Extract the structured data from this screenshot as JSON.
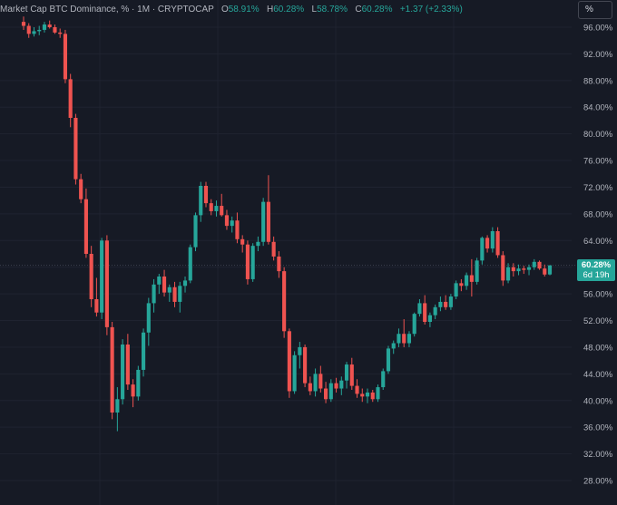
{
  "header": {
    "symbol_text": "Market Cap BTC Dominance, % · 1M · CRYPTOCAP",
    "open_label": "O",
    "open_value": "58.91%",
    "high_label": "H",
    "high_value": "60.28%",
    "low_label": "L",
    "low_value": "58.78%",
    "close_label": "C",
    "close_value": "60.28%",
    "change_value": "+1.37 (+2.33%)"
  },
  "scale_button_label": "%",
  "price_tag": {
    "price": "60.28%",
    "countdown": "6d 19h"
  },
  "colors": {
    "background": "#161a25",
    "up": "#26a69a",
    "down": "#ef5350",
    "grid": "#1f2330",
    "text": "#b2b5be"
  },
  "chart_data": {
    "type": "candlestick",
    "y_axis_labels": [
      "96.00%",
      "92.00%",
      "88.00%",
      "84.00%",
      "80.00%",
      "76.00%",
      "72.00%",
      "68.00%",
      "64.00%",
      "60.00%",
      "56.00%",
      "52.00%",
      "48.00%",
      "44.00%",
      "40.00%",
      "36.00%",
      "32.00%",
      "28.00%"
    ],
    "ylim": [
      24,
      98.5
    ],
    "last_price": 60.28,
    "grid": true,
    "ohlc": [
      [
        96.8,
        97.6,
        95.6,
        96.2
      ],
      [
        96.2,
        96.6,
        94.4,
        95.0
      ],
      [
        95.0,
        96.0,
        94.6,
        95.4
      ],
      [
        95.4,
        96.2,
        94.8,
        95.6
      ],
      [
        95.6,
        96.8,
        95.2,
        96.4
      ],
      [
        96.4,
        97.0,
        95.8,
        96.0
      ],
      [
        96.0,
        96.4,
        95.0,
        95.2
      ],
      [
        95.2,
        95.8,
        94.4,
        95.0
      ],
      [
        95.0,
        95.6,
        87.6,
        88.2
      ],
      [
        88.2,
        89.0,
        81.0,
        82.4
      ],
      [
        82.4,
        83.0,
        72.4,
        73.2
      ],
      [
        73.2,
        74.0,
        69.6,
        70.2
      ],
      [
        70.2,
        71.8,
        61.4,
        62.0
      ],
      [
        62.0,
        63.2,
        54.0,
        55.2
      ],
      [
        55.2,
        58.4,
        52.6,
        53.2
      ],
      [
        53.2,
        64.4,
        52.2,
        64.0
      ],
      [
        64.0,
        64.8,
        49.8,
        51.0
      ],
      [
        51.0,
        51.8,
        37.2,
        38.2
      ],
      [
        38.2,
        42.0,
        35.4,
        40.2
      ],
      [
        40.2,
        49.2,
        39.4,
        48.4
      ],
      [
        48.4,
        50.0,
        41.6,
        42.4
      ],
      [
        42.4,
        43.2,
        39.0,
        40.6
      ],
      [
        40.6,
        45.2,
        40.0,
        44.6
      ],
      [
        44.6,
        50.8,
        43.6,
        50.2
      ],
      [
        50.2,
        55.4,
        48.2,
        54.6
      ],
      [
        54.6,
        58.2,
        53.2,
        57.4
      ],
      [
        57.4,
        59.0,
        56.0,
        58.6
      ],
      [
        58.6,
        59.6,
        55.6,
        56.2
      ],
      [
        56.2,
        57.4,
        54.8,
        57.0
      ],
      [
        57.0,
        57.8,
        54.0,
        54.8
      ],
      [
        54.8,
        57.8,
        53.2,
        57.2
      ],
      [
        57.2,
        58.6,
        56.2,
        58.0
      ],
      [
        58.0,
        63.4,
        57.6,
        63.0
      ],
      [
        63.0,
        68.2,
        62.4,
        67.8
      ],
      [
        67.8,
        72.8,
        66.8,
        72.2
      ],
      [
        72.2,
        72.8,
        69.0,
        69.6
      ],
      [
        69.6,
        70.2,
        67.8,
        68.4
      ],
      [
        68.4,
        70.0,
        67.6,
        69.2
      ],
      [
        69.2,
        71.0,
        67.6,
        67.8
      ],
      [
        67.8,
        68.6,
        65.6,
        66.2
      ],
      [
        66.2,
        67.6,
        65.2,
        67.0
      ],
      [
        67.0,
        68.2,
        63.6,
        64.2
      ],
      [
        64.2,
        64.8,
        62.2,
        63.4
      ],
      [
        63.4,
        64.0,
        57.4,
        58.2
      ],
      [
        58.2,
        63.6,
        57.8,
        63.2
      ],
      [
        63.2,
        64.6,
        62.4,
        63.8
      ],
      [
        63.8,
        70.4,
        63.2,
        69.8
      ],
      [
        69.8,
        73.8,
        63.4,
        63.8
      ],
      [
        63.8,
        64.6,
        61.0,
        61.6
      ],
      [
        61.6,
        62.4,
        58.4,
        59.4
      ],
      [
        59.4,
        60.0,
        49.4,
        50.4
      ],
      [
        50.4,
        50.8,
        40.4,
        41.4
      ],
      [
        41.4,
        47.4,
        41.0,
        46.8
      ],
      [
        46.8,
        48.8,
        44.8,
        48.0
      ],
      [
        48.0,
        48.4,
        42.0,
        42.6
      ],
      [
        42.6,
        43.6,
        40.8,
        41.4
      ],
      [
        41.4,
        44.8,
        40.6,
        44.0
      ],
      [
        44.0,
        45.2,
        41.2,
        41.8
      ],
      [
        41.8,
        42.8,
        39.6,
        40.2
      ],
      [
        40.2,
        43.2,
        39.8,
        42.6
      ],
      [
        42.6,
        43.4,
        41.2,
        41.8
      ],
      [
        41.8,
        43.6,
        40.8,
        43.0
      ],
      [
        43.0,
        45.8,
        41.8,
        45.4
      ],
      [
        45.4,
        46.4,
        41.6,
        42.2
      ],
      [
        42.2,
        43.2,
        40.4,
        41.0
      ],
      [
        41.0,
        41.8,
        39.8,
        40.6
      ],
      [
        40.6,
        41.8,
        39.6,
        41.2
      ],
      [
        41.2,
        41.6,
        39.8,
        40.2
      ],
      [
        40.2,
        42.4,
        39.8,
        42.0
      ],
      [
        42.0,
        44.8,
        41.6,
        44.4
      ],
      [
        44.4,
        48.2,
        44.0,
        47.8
      ],
      [
        47.8,
        49.0,
        47.0,
        48.6
      ],
      [
        48.6,
        50.8,
        48.0,
        50.0
      ],
      [
        50.0,
        52.2,
        48.0,
        48.6
      ],
      [
        48.6,
        50.4,
        48.0,
        50.0
      ],
      [
        50.0,
        53.2,
        49.6,
        53.0
      ],
      [
        53.0,
        55.2,
        52.6,
        54.6
      ],
      [
        54.6,
        55.8,
        51.4,
        51.8
      ],
      [
        51.8,
        53.2,
        51.0,
        52.8
      ],
      [
        52.8,
        54.4,
        52.2,
        54.0
      ],
      [
        54.0,
        55.6,
        53.4,
        54.8
      ],
      [
        54.8,
        55.8,
        53.6,
        54.0
      ],
      [
        54.0,
        56.0,
        53.6,
        55.6
      ],
      [
        55.6,
        58.0,
        55.2,
        57.6
      ],
      [
        57.6,
        58.2,
        56.4,
        57.2
      ],
      [
        57.2,
        59.2,
        56.6,
        58.8
      ],
      [
        58.8,
        61.2,
        55.6,
        57.8
      ],
      [
        57.8,
        61.4,
        57.4,
        61.0
      ],
      [
        61.0,
        64.6,
        60.4,
        64.4
      ],
      [
        64.4,
        64.8,
        62.2,
        62.8
      ],
      [
        62.8,
        66.0,
        62.2,
        65.4
      ],
      [
        65.4,
        66.0,
        61.4,
        61.8
      ],
      [
        61.8,
        62.4,
        57.2,
        58.0
      ],
      [
        58.0,
        60.6,
        57.6,
        60.0
      ],
      [
        60.0,
        60.6,
        58.6,
        59.4
      ],
      [
        59.4,
        60.4,
        58.8,
        59.8
      ],
      [
        59.8,
        60.2,
        59.0,
        59.6
      ],
      [
        59.6,
        60.4,
        58.8,
        60.0
      ],
      [
        60.0,
        61.2,
        59.6,
        60.8
      ],
      [
        60.8,
        61.0,
        59.6,
        59.8
      ],
      [
        59.8,
        60.4,
        58.6,
        58.9
      ],
      [
        58.91,
        60.28,
        58.78,
        60.28
      ]
    ]
  }
}
